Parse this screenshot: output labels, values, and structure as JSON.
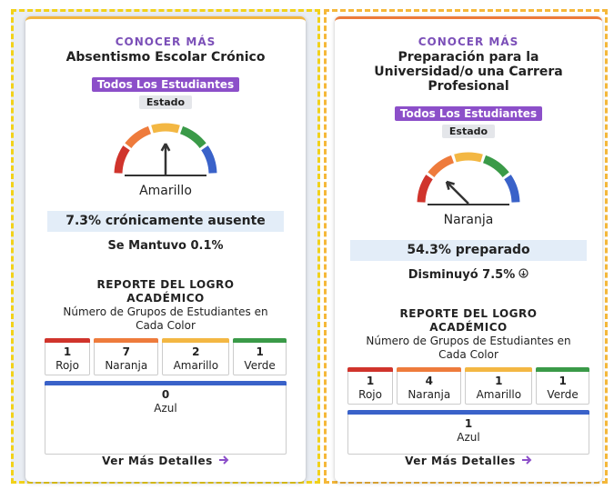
{
  "cards": [
    {
      "link": "CONOCER MÁS",
      "title": "Absentismo Escolar Crónico",
      "badge": "Todos Los Estudiantes",
      "scope": "Estado",
      "status": "Amarillo",
      "metric": "7.3% crónicamente ausente",
      "change": "Se Mantuvo 0.1%",
      "report_title": "REPORTE DEL LOGRO ACADÉMICO",
      "report_subtitle": "Número de Grupos de Estudiantes en Cada Color",
      "counts": [
        {
          "count": "1",
          "label": "Rojo"
        },
        {
          "count": "7",
          "label": "Naranja"
        },
        {
          "count": "2",
          "label": "Amarillo"
        },
        {
          "count": "1",
          "label": "Verde"
        }
      ],
      "blue": {
        "count": "0",
        "label": "Azul"
      },
      "details": "Ver Más Detalles"
    },
    {
      "link": "CONOCER MÁS",
      "title": "Preparación para la Universidad/o una Carrera Profesional",
      "badge": "Todos Los Estudiantes",
      "scope": "Estado",
      "status": "Naranja",
      "metric": "54.3% preparado",
      "change": "Disminuyó 7.5%",
      "report_title": "REPORTE DEL LOGRO ACADÉMICO",
      "report_subtitle": "Número de Grupos de Estudiantes en Cada Color",
      "counts": [
        {
          "count": "1",
          "label": "Rojo"
        },
        {
          "count": "4",
          "label": "Naranja"
        },
        {
          "count": "1",
          "label": "Amarillo"
        },
        {
          "count": "1",
          "label": "Verde"
        }
      ],
      "blue": {
        "count": "1",
        "label": "Azul"
      },
      "details": "Ver Más Detalles"
    }
  ]
}
